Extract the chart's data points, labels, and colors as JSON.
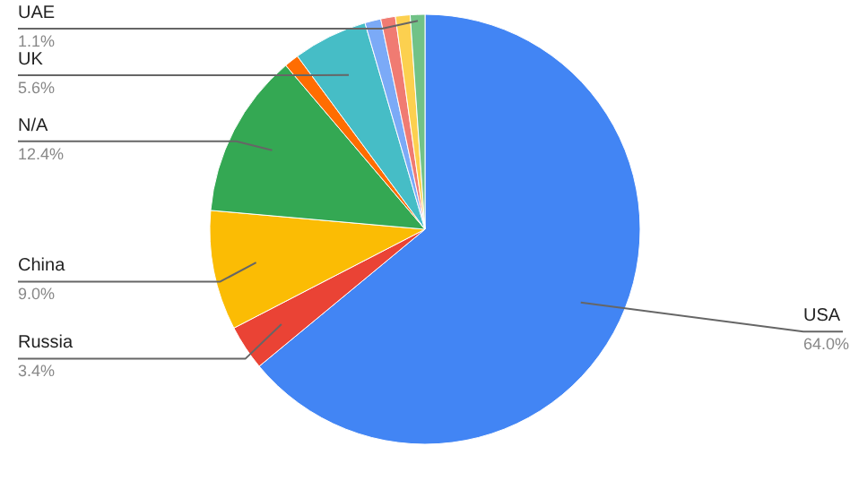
{
  "chart_data": {
    "type": "pie",
    "categories": [
      "USA",
      "Russia",
      "China",
      "N/A",
      null,
      "UK",
      null,
      null,
      null,
      "UAE"
    ],
    "values": [
      64.0,
      3.4,
      9.0,
      12.4,
      1.1,
      5.6,
      1.2,
      1.1,
      1.1,
      1.1
    ],
    "colors": [
      "#4285f4",
      "#ea4335",
      "#fbbc04",
      "#34a853",
      "#ff6d01",
      "#46bdc6",
      "#7baaf7",
      "#f07b72",
      "#fcd04f",
      "#71c287"
    ],
    "value_labels": [
      "64.0%",
      "3.4%",
      "9.0%",
      "12.4%",
      null,
      "5.6%",
      null,
      null,
      null,
      "1.1%"
    ]
  }
}
